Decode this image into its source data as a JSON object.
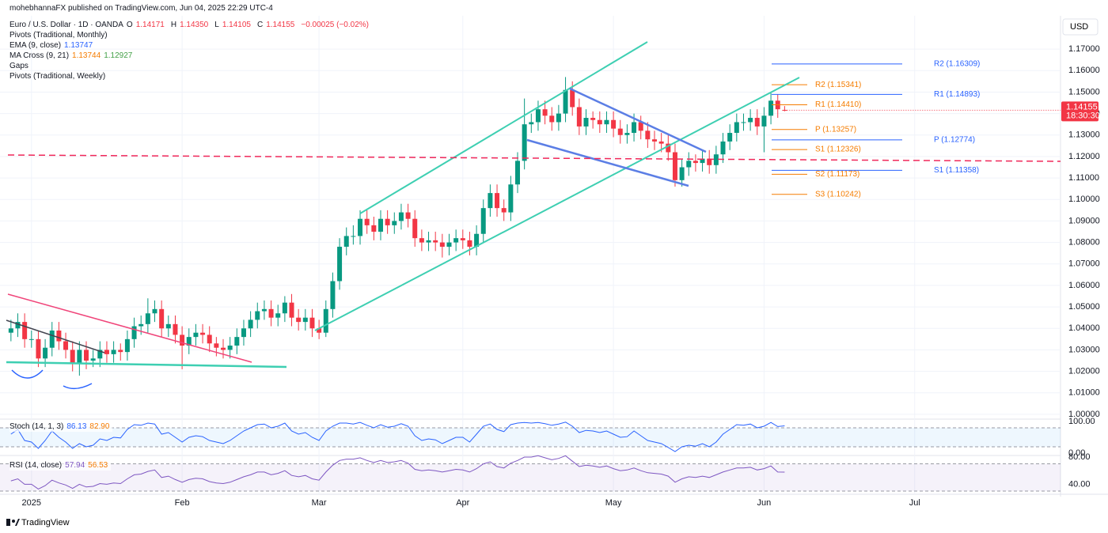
{
  "header": {
    "published": "mohebhannaFX published on TradingView.com, Jun 04, 2025 22:29 UTC-4",
    "symbol": "Euro / U.S. Dollar · 1D · OANDA",
    "ohlc": [
      {
        "label": "O",
        "value": "1.14171"
      },
      {
        "label": "H",
        "value": "1.14350"
      },
      {
        "label": "L",
        "value": "1.14105"
      },
      {
        "label": "C",
        "value": "1.14155"
      }
    ],
    "change": "−0.00025 (−0.02%)",
    "indicators": [
      {
        "name": "Pivots (Traditional, Monthly)",
        "values": []
      },
      {
        "name": "EMA (9, close)",
        "values": [
          "1.13747"
        ]
      },
      {
        "name": "MA Cross (9, 21)",
        "values": [
          "1.13744",
          "1.12927"
        ]
      },
      {
        "name": "Gaps",
        "values": []
      },
      {
        "name": "Pivots (Traditional, Weekly)",
        "values": []
      }
    ],
    "currency": "USD",
    "footer": "TradingView"
  },
  "chart_data": [
    {
      "type": "candlestick",
      "up_color": "#089981",
      "down_color": "#f23645",
      "open": [
        1.038,
        1.04,
        1.043,
        1.035,
        1.035,
        1.026,
        1.031,
        1.039,
        1.034,
        1.03,
        1.024,
        1.03,
        1.025,
        1.026,
        1.03,
        1.028,
        1.03,
        1.029,
        1.035,
        1.041,
        1.042,
        1.047,
        1.049,
        1.04,
        1.042,
        1.037,
        1.032,
        1.036,
        1.038,
        1.037,
        1.033,
        1.031,
        1.03,
        1.032,
        1.036,
        1.04,
        1.044,
        1.048,
        1.049,
        1.045,
        1.047,
        1.052,
        1.045,
        1.043,
        1.045,
        1.04,
        1.038,
        1.049,
        1.062,
        1.078,
        1.083,
        1.083,
        1.091,
        1.088,
        1.085,
        1.091,
        1.088,
        1.09,
        1.094,
        1.091,
        1.082,
        1.08,
        1.081,
        1.08,
        1.078,
        1.08,
        1.082,
        1.081,
        1.078,
        1.084,
        1.096,
        1.103,
        1.096,
        1.094,
        1.107,
        1.118,
        1.135,
        1.136,
        1.142,
        1.139,
        1.136,
        1.14,
        1.151,
        1.143,
        1.134,
        1.138,
        1.137,
        1.135,
        1.137,
        1.133,
        1.13,
        1.131,
        1.136,
        1.132,
        1.128,
        1.127,
        1.126,
        1.122,
        1.109,
        1.115,
        1.118,
        1.117,
        1.119,
        1.116,
        1.121,
        1.127,
        1.131,
        1.136,
        1.136,
        1.138,
        1.134,
        1.139,
        1.146,
        1.14171
      ],
      "high": [
        1.044,
        1.047,
        1.047,
        1.039,
        1.039,
        1.035,
        1.043,
        1.043,
        1.038,
        1.034,
        1.034,
        1.034,
        1.03,
        1.034,
        1.034,
        1.034,
        1.033,
        1.039,
        1.045,
        1.046,
        1.054,
        1.053,
        1.053,
        1.046,
        1.046,
        1.041,
        1.04,
        1.042,
        1.042,
        1.041,
        1.036,
        1.035,
        1.036,
        1.04,
        1.044,
        1.048,
        1.052,
        1.053,
        1.053,
        1.051,
        1.055,
        1.056,
        1.049,
        1.049,
        1.049,
        1.044,
        1.053,
        1.066,
        1.082,
        1.087,
        1.088,
        1.095,
        1.095,
        1.092,
        1.095,
        1.095,
        1.094,
        1.098,
        1.098,
        1.095,
        1.086,
        1.085,
        1.085,
        1.084,
        1.084,
        1.086,
        1.086,
        1.085,
        1.088,
        1.1,
        1.107,
        1.107,
        1.1,
        1.111,
        1.122,
        1.147,
        1.14,
        1.146,
        1.146,
        1.143,
        1.144,
        1.157,
        1.155,
        1.147,
        1.142,
        1.141,
        1.141,
        1.141,
        1.141,
        1.137,
        1.135,
        1.14,
        1.139,
        1.136,
        1.132,
        1.131,
        1.13,
        1.126,
        1.119,
        1.122,
        1.121,
        1.123,
        1.123,
        1.125,
        1.131,
        1.135,
        1.14,
        1.14,
        1.142,
        1.142,
        1.143,
        1.15,
        1.149,
        1.1435
      ],
      "low": [
        1.034,
        1.036,
        1.031,
        1.031,
        1.022,
        1.022,
        1.027,
        1.03,
        1.026,
        1.02,
        1.018,
        1.021,
        1.022,
        1.022,
        1.024,
        1.024,
        1.025,
        1.025,
        1.031,
        1.037,
        1.038,
        1.043,
        1.036,
        1.036,
        1.033,
        1.021,
        1.028,
        1.032,
        1.033,
        1.029,
        1.027,
        1.026,
        1.026,
        1.028,
        1.032,
        1.036,
        1.04,
        1.044,
        1.041,
        1.041,
        1.043,
        1.041,
        1.039,
        1.039,
        1.036,
        1.035,
        1.036,
        1.045,
        1.058,
        1.074,
        1.079,
        1.079,
        1.084,
        1.081,
        1.081,
        1.084,
        1.084,
        1.086,
        1.087,
        1.078,
        1.076,
        1.076,
        1.076,
        1.073,
        1.074,
        1.076,
        1.077,
        1.074,
        1.074,
        1.08,
        1.092,
        1.092,
        1.09,
        1.09,
        1.103,
        1.114,
        1.131,
        1.132,
        1.135,
        1.132,
        1.132,
        1.136,
        1.139,
        1.13,
        1.13,
        1.133,
        1.131,
        1.131,
        1.129,
        1.126,
        1.126,
        1.127,
        1.128,
        1.124,
        1.123,
        1.122,
        1.118,
        1.106,
        1.106,
        1.111,
        1.113,
        1.113,
        1.112,
        1.112,
        1.117,
        1.123,
        1.127,
        1.132,
        1.132,
        1.13,
        1.122,
        1.135,
        1.138,
        1.14105
      ],
      "close": [
        1.04,
        1.043,
        1.035,
        1.035,
        1.026,
        1.031,
        1.039,
        1.034,
        1.03,
        1.024,
        1.03,
        1.025,
        1.026,
        1.03,
        1.028,
        1.03,
        1.029,
        1.035,
        1.041,
        1.042,
        1.047,
        1.049,
        1.04,
        1.042,
        1.037,
        1.032,
        1.036,
        1.038,
        1.037,
        1.033,
        1.031,
        1.03,
        1.032,
        1.036,
        1.04,
        1.044,
        1.048,
        1.049,
        1.045,
        1.047,
        1.052,
        1.045,
        1.043,
        1.045,
        1.04,
        1.038,
        1.049,
        1.062,
        1.078,
        1.083,
        1.083,
        1.091,
        1.088,
        1.085,
        1.091,
        1.088,
        1.09,
        1.094,
        1.091,
        1.082,
        1.08,
        1.081,
        1.08,
        1.078,
        1.08,
        1.082,
        1.081,
        1.078,
        1.084,
        1.096,
        1.103,
        1.096,
        1.094,
        1.107,
        1.118,
        1.135,
        1.136,
        1.142,
        1.139,
        1.136,
        1.14,
        1.151,
        1.143,
        1.134,
        1.138,
        1.137,
        1.135,
        1.137,
        1.133,
        1.13,
        1.131,
        1.136,
        1.132,
        1.128,
        1.127,
        1.126,
        1.122,
        1.109,
        1.115,
        1.118,
        1.117,
        1.119,
        1.116,
        1.121,
        1.127,
        1.131,
        1.136,
        1.136,
        1.138,
        1.134,
        1.139,
        1.146,
        1.142,
        1.14155
      ],
      "price_tag": "1.14155",
      "countdown": "18:30:30",
      "xlim": [
        -1.6,
        153.3
      ],
      "xticks": [
        {
          "value": 3,
          "label": "2025"
        },
        {
          "value": 25,
          "label": "Feb"
        },
        {
          "value": 45,
          "label": "Mar"
        },
        {
          "value": 66,
          "label": "Apr"
        },
        {
          "value": 88,
          "label": "May"
        },
        {
          "value": 110,
          "label": "Jun"
        },
        {
          "value": 132,
          "label": "Jul"
        }
      ],
      "ylim": [
        0.9985,
        1.1855
      ],
      "yticks": [
        {
          "value": 1.17,
          "label": "1.17000"
        },
        {
          "value": 1.16,
          "label": "1.16000"
        },
        {
          "value": 1.15,
          "label": "1.15000"
        },
        {
          "value": 1.14,
          "label": "1.14000"
        },
        {
          "value": 1.13,
          "label": "1.13000"
        },
        {
          "value": 1.12,
          "label": "1.12000"
        },
        {
          "value": 1.11,
          "label": "1.11000"
        },
        {
          "value": 1.1,
          "label": "1.10000"
        },
        {
          "value": 1.09,
          "label": "1.09000"
        },
        {
          "value": 1.08,
          "label": "1.08000"
        },
        {
          "value": 1.07,
          "label": "1.07000"
        },
        {
          "value": 1.06,
          "label": "1.06000"
        },
        {
          "value": 1.05,
          "label": "1.05000"
        },
        {
          "value": 1.04,
          "label": "1.04000"
        },
        {
          "value": 1.03,
          "label": "1.03000"
        },
        {
          "value": 1.02,
          "label": "1.02000"
        },
        {
          "value": 1.01,
          "label": "1.01000"
        },
        {
          "value": 1.0,
          "label": "1.00000"
        }
      ],
      "grid": true,
      "pivots_monthly": {
        "color": "#f57c00",
        "levels": [
          1.15341,
          1.1441,
          1.13257,
          1.12326,
          1.11173,
          1.10242
        ],
        "labels": [
          "R2 (1.15341)",
          "R1 (1.14410)",
          "P (1.13257)",
          "S1 (1.12326)",
          "S2 (1.11173)",
          "S3 (1.10242)"
        ]
      },
      "pivots_weekly": {
        "color": "#2962ff",
        "levels": [
          1.16309,
          1.14893,
          1.12774,
          1.11358
        ],
        "labels": [
          "R2 (1.16309)",
          "R1 (1.14893)",
          "P (1.12774)",
          "S1 (1.11358)"
        ]
      }
    },
    {
      "type": "line",
      "title": "Stoch (14, 1, 3)",
      "legend_values": [
        "86.13",
        "82.90"
      ],
      "color": "#2962ff",
      "values": [
        60,
        75,
        40,
        35,
        15,
        40,
        70,
        50,
        35,
        15,
        30,
        20,
        25,
        45,
        40,
        50,
        48,
        75,
        90,
        88,
        95,
        92,
        60,
        65,
        50,
        35,
        50,
        55,
        52,
        40,
        35,
        30,
        40,
        55,
        70,
        80,
        90,
        92,
        80,
        85,
        95,
        70,
        60,
        65,
        50,
        40,
        70,
        85,
        95,
        95,
        92,
        97,
        88,
        80,
        90,
        82,
        85,
        93,
        85,
        55,
        40,
        45,
        42,
        30,
        40,
        50,
        50,
        35,
        60,
        85,
        92,
        75,
        68,
        90,
        95,
        97,
        95,
        97,
        93,
        88,
        92,
        98,
        85,
        65,
        72,
        70,
        65,
        70,
        60,
        50,
        52,
        70,
        55,
        40,
        35,
        30,
        18,
        5,
        20,
        25,
        22,
        30,
        20,
        35,
        60,
        75,
        90,
        88,
        92,
        80,
        85,
        97,
        84,
        86.13
      ],
      "ylim": [
        0,
        100
      ],
      "yticks": [
        {
          "value": 100,
          "label": "100.00"
        },
        {
          "value": 0,
          "label": "0.00"
        }
      ],
      "bands": [
        20,
        80
      ],
      "band_color": "#2196f3"
    },
    {
      "type": "line",
      "title": "RSI (14, close)",
      "legend_values": [
        "57.94",
        "56.53"
      ],
      "color": "#7e57c2",
      "values": [
        45,
        48,
        40,
        40,
        33,
        38,
        46,
        42,
        39,
        34,
        40,
        36,
        37,
        41,
        40,
        42,
        41,
        48,
        54,
        55,
        59,
        61,
        50,
        52,
        47,
        43,
        47,
        49,
        48,
        44,
        42,
        41,
        43,
        47,
        51,
        54,
        58,
        58,
        54,
        56,
        60,
        53,
        51,
        53,
        48,
        46,
        58,
        68,
        75,
        77,
        77,
        79,
        75,
        72,
        75,
        72,
        73,
        75,
        71,
        62,
        60,
        61,
        60,
        58,
        60,
        62,
        61,
        58,
        63,
        70,
        73,
        66,
        64,
        71,
        75,
        80,
        80,
        82,
        79,
        76,
        78,
        82,
        74,
        66,
        68,
        67,
        65,
        67,
        63,
        60,
        61,
        64,
        60,
        57,
        56,
        55,
        52,
        43,
        48,
        51,
        50,
        52,
        50,
        54,
        58,
        61,
        64,
        64,
        65,
        61,
        63,
        67,
        58,
        57.94
      ],
      "ylim": [
        30,
        80
      ],
      "yticks": [
        {
          "value": 80,
          "label": "80.00"
        },
        {
          "value": 40,
          "label": "40.00"
        }
      ],
      "bands": [
        30,
        70
      ],
      "band_color": "#7e57c2"
    }
  ]
}
